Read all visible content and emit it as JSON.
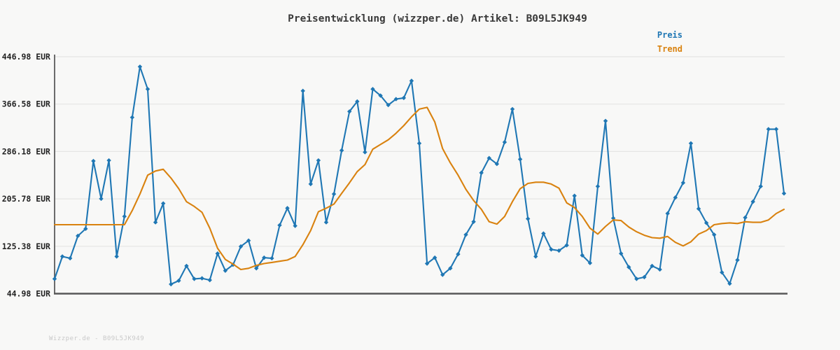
{
  "title": "Preisentwicklung (wizzper.de) Artikel: B09L5JK949",
  "legend": {
    "preis": "Preis",
    "trend": "Trend"
  },
  "footer": {
    "watermark": "Wizzper.de - B09L5JK949"
  },
  "colors": {
    "preis": "#1f77b4",
    "trend": "#d9820f",
    "grid": "#e5e5e4",
    "axis": "#6b6b6b",
    "tick_text": "#222222",
    "title_text": "#3a3a3a",
    "footer_text": "#c9c9c9",
    "background": "#f8f8f7"
  },
  "chart_data": {
    "type": "line",
    "title": "Preisentwicklung (wizzper.de) Artikel: B09L5JK949",
    "currency": "EUR",
    "ylim": [
      44.98,
      446.98
    ],
    "grid": true,
    "x_tick_labels": "none",
    "legend_position": "top-right",
    "y_ticks": [
      {
        "value": 446.98,
        "label": "446.98 EUR"
      },
      {
        "value": 366.58,
        "label": "366.58 EUR"
      },
      {
        "value": 286.18,
        "label": "286.18 EUR"
      },
      {
        "value": 205.78,
        "label": "205.78 EUR"
      },
      {
        "value": 125.38,
        "label": "125.38 EUR"
      },
      {
        "value": 44.98,
        "label": "44.98 EUR"
      }
    ],
    "series": [
      {
        "name": "Preis",
        "color": "#1f77b4",
        "markers": true,
        "values": [
          70,
          108,
          105,
          143,
          155,
          270,
          206,
          271,
          108,
          176,
          344,
          430,
          392,
          166,
          198,
          61,
          67,
          92,
          70,
          71,
          68,
          113,
          84,
          94,
          125,
          135,
          88,
          106,
          105,
          161,
          190,
          160,
          389,
          231,
          271,
          166,
          214,
          288,
          354,
          371,
          285,
          392,
          381,
          365,
          375,
          377,
          406,
          300,
          96,
          106,
          77,
          88,
          112,
          145,
          167,
          250,
          275,
          265,
          302,
          358,
          273,
          172,
          108,
          147,
          120,
          118,
          127,
          211,
          110,
          97,
          227,
          338,
          173,
          113,
          90,
          70,
          73,
          92,
          86,
          181,
          208,
          233,
          300,
          189,
          165,
          145,
          81,
          62,
          102,
          174,
          201,
          227,
          324,
          324,
          215
        ]
      },
      {
        "name": "Trend",
        "color": "#d9820f",
        "markers": false,
        "values": [
          162,
          162,
          162,
          162,
          162,
          162,
          162,
          162,
          162,
          162,
          186,
          214,
          246,
          253,
          256,
          241,
          223,
          201,
          193,
          183,
          156,
          122,
          103,
          95,
          86,
          88,
          93,
          96,
          98,
          100,
          102,
          108,
          128,
          152,
          184,
          190,
          197,
          215,
          233,
          252,
          264,
          290,
          298,
          306,
          317,
          330,
          345,
          358,
          361,
          336,
          291,
          267,
          246,
          222,
          203,
          188,
          167,
          163,
          176,
          201,
          223,
          232,
          234,
          234,
          231,
          224,
          199,
          191,
          176,
          156,
          146,
          159,
          170,
          169,
          158,
          150,
          144,
          140,
          139,
          142,
          132,
          126,
          133,
          146,
          152,
          162,
          164,
          165,
          164,
          167,
          166,
          166,
          170,
          181,
          188
        ]
      }
    ]
  }
}
